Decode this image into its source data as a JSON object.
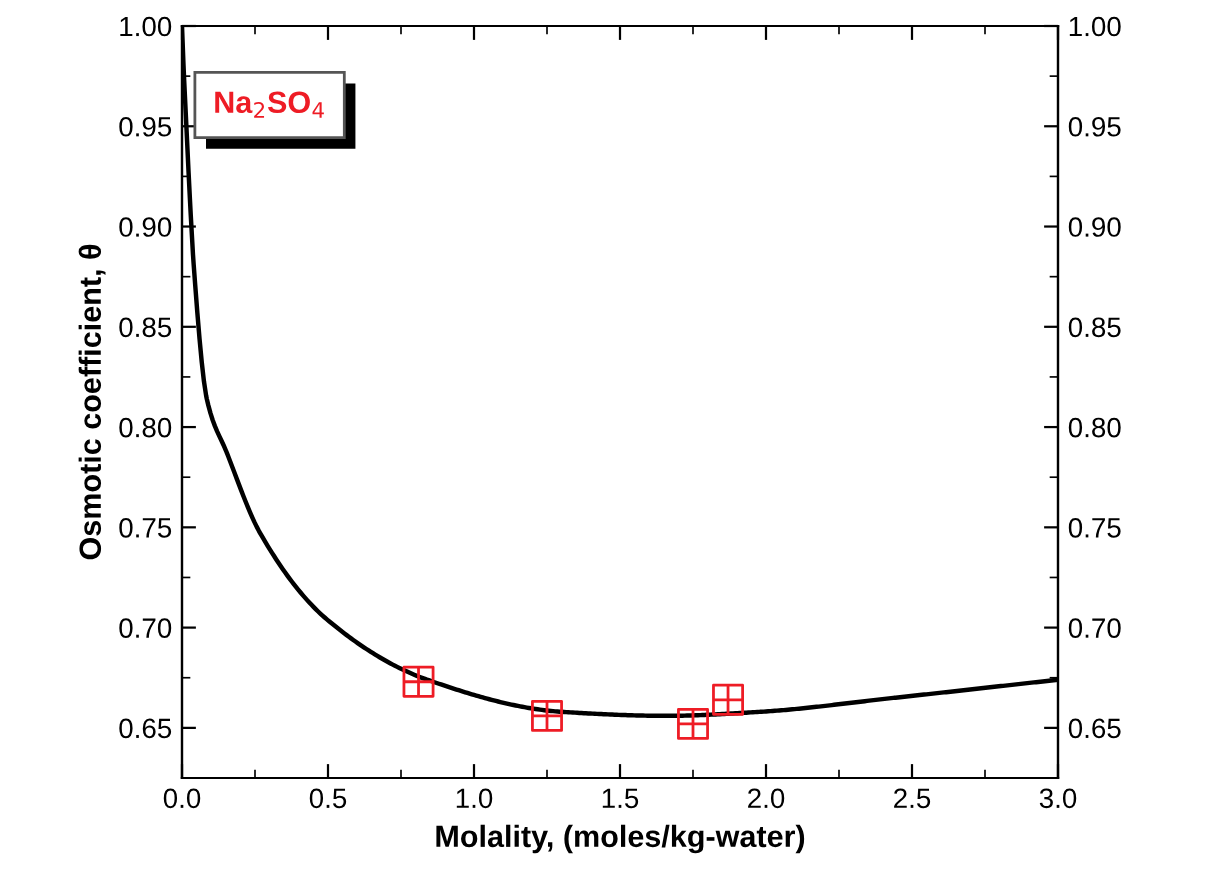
{
  "chart_data": {
    "type": "line",
    "xlabel": "Molality, (moles/kg-water)",
    "ylabel": "Osmotic coefficient, θ",
    "annotations": [
      "Na$_{2}$SO$_{4}$"
    ],
    "xlim": [
      0,
      3
    ],
    "ylim": [
      0.625,
      1.0
    ],
    "y2lim": [
      0.625,
      1.0
    ],
    "xticks": [
      {
        "value": 0,
        "label": "0.0"
      },
      0.5,
      {
        "value": 1,
        "label": "1.0"
      },
      1.5,
      {
        "value": 2,
        "label": "2.0"
      },
      2.5,
      {
        "value": 3,
        "label": "3.0"
      }
    ],
    "yticks": [
      0.65,
      {
        "value": 0.7,
        "label": "0.70"
      },
      0.75,
      {
        "value": 0.8,
        "label": "0.80"
      },
      0.85,
      {
        "value": 0.9,
        "label": "0.90"
      },
      0.95,
      {
        "value": 1.0,
        "label": "1.00"
      }
    ],
    "y2ticks": [
      0.65,
      {
        "value": 0.7,
        "label": "0.70"
      },
      0.75,
      {
        "value": 0.8,
        "label": "0.80"
      },
      0.85,
      {
        "value": 0.9,
        "label": "0.90"
      },
      0.95,
      {
        "value": 1.0,
        "label": "1.00"
      }
    ],
    "grid": false,
    "legend": false,
    "series": [
      {
        "color": "#000000",
        "marker": "none",
        "line_style": "solid",
        "x": [
          0,
          0.005,
          0.016,
          0.027,
          0.04,
          0.085,
          0.154,
          0.268,
          0.497,
          0.84,
          1.3,
          1.66,
          1.98,
          2.44,
          3.0
        ],
        "values": [
          1.0,
          0.981,
          0.947,
          0.914,
          0.881,
          0.814,
          0.787,
          0.747,
          0.704,
          0.674,
          0.658,
          0.656,
          0.658,
          0.665,
          0.674
        ]
      },
      {
        "type": "scatter",
        "color": "#ee1c25",
        "marker": "square",
        "x": [
          0.81,
          1.25,
          1.75,
          1.87
        ],
        "values": [
          0.673,
          0.656,
          0.652,
          0.664
        ]
      }
    ]
  }
}
